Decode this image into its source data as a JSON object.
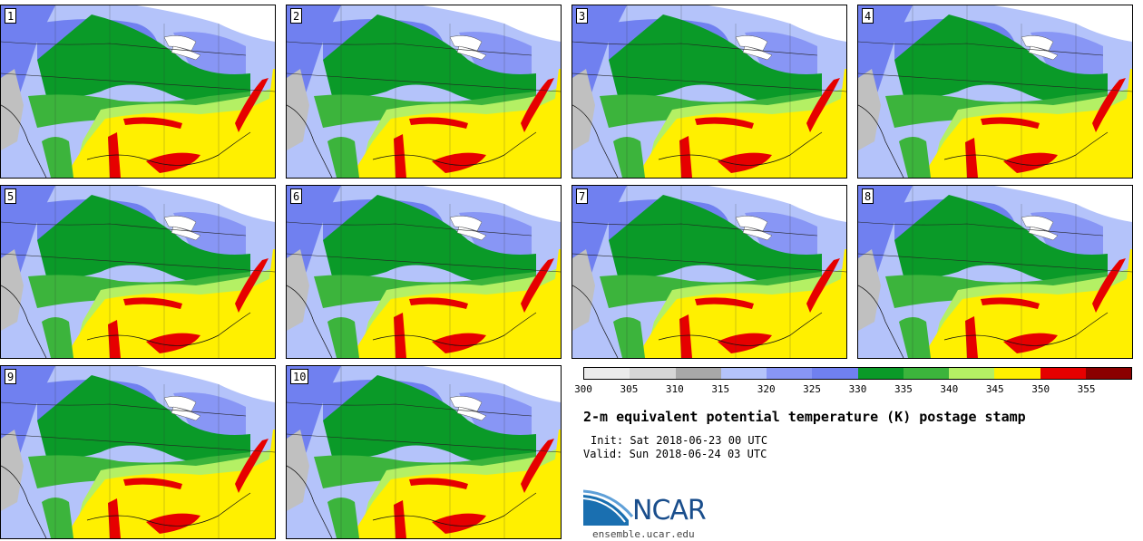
{
  "stamps": [
    {
      "label": "1"
    },
    {
      "label": "2"
    },
    {
      "label": "3"
    },
    {
      "label": "4"
    },
    {
      "label": "5"
    },
    {
      "label": "6"
    },
    {
      "label": "7"
    },
    {
      "label": "8"
    },
    {
      "label": "9"
    },
    {
      "label": "10"
    }
  ],
  "colorbar": {
    "colors": [
      "#ebebeb",
      "#d6d6d6",
      "#a8a8a8",
      "#b4c3fa",
      "#8896f5",
      "#7080f0",
      "#0a9a28",
      "#3cb43c",
      "#b4f064",
      "#fff000",
      "#e60000",
      "#8b0000"
    ],
    "ticks": [
      "300",
      "305",
      "310",
      "315",
      "320",
      "325",
      "330",
      "335",
      "340",
      "345",
      "350",
      "355"
    ]
  },
  "title": "2-m equivalent potential temperature (K) postage stamp",
  "init": "Init: Sat 2018-06-23 00 UTC",
  "valid": "Valid: Sun 2018-06-24 03 UTC",
  "logo_text": "NCAR",
  "site": "ensemble.ucar.edu"
}
